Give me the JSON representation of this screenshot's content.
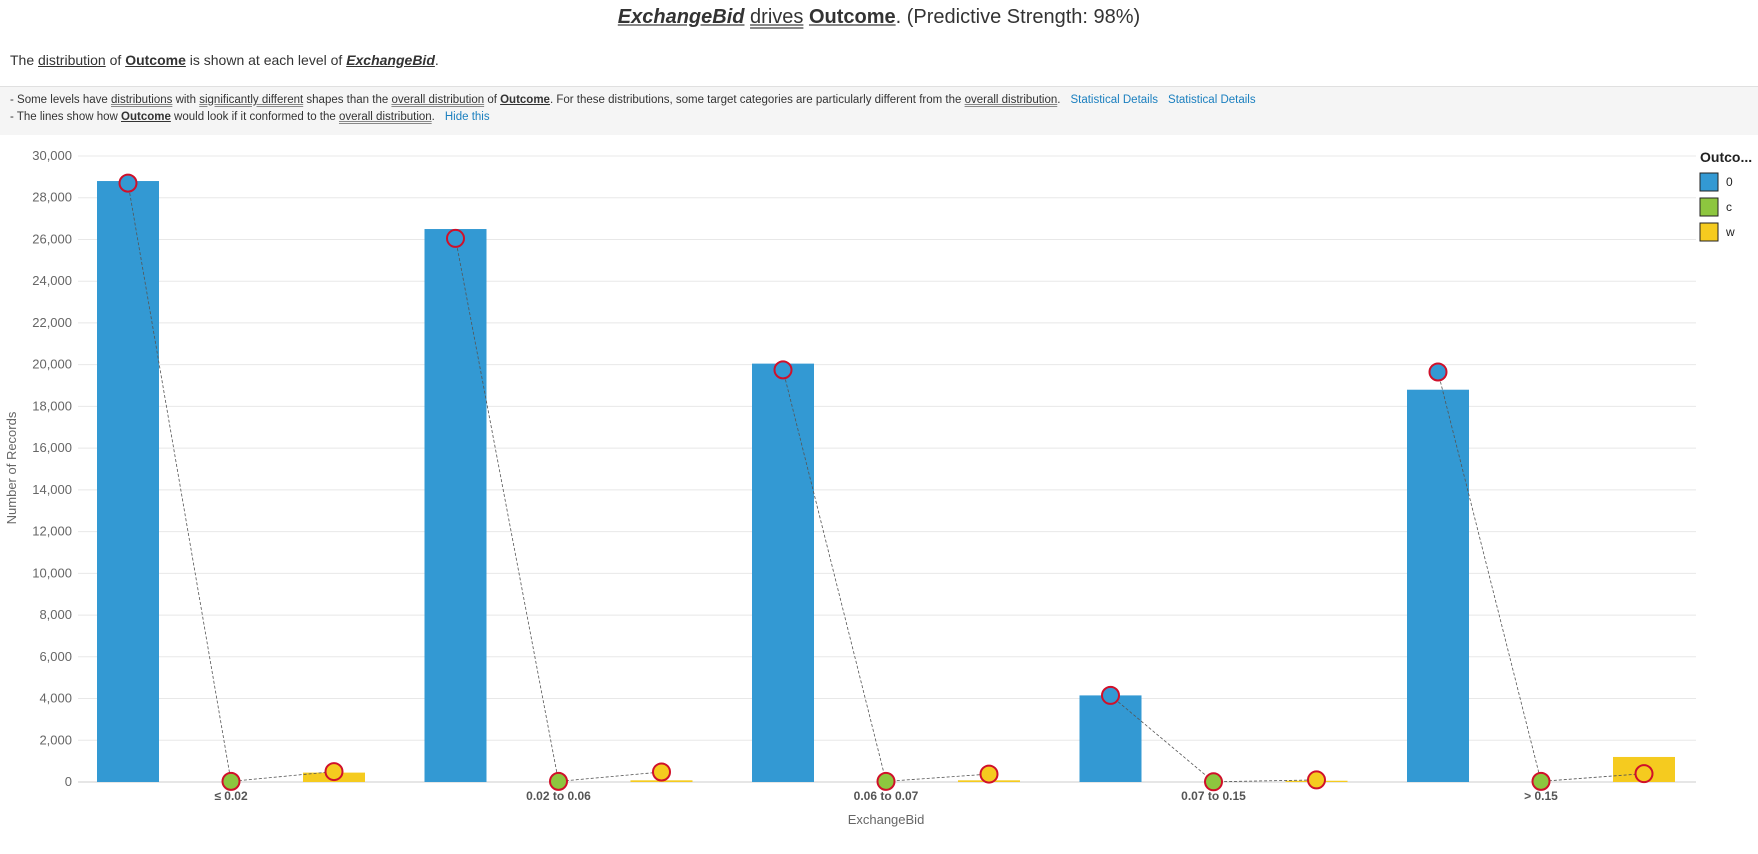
{
  "headline": {
    "driver": "ExchangeBid",
    "verb": "drives",
    "target": "Outcome",
    "suffix": ". (Predictive Strength: 98%)"
  },
  "subline": {
    "p1": "The ",
    "distribution": "distribution",
    "p2": " of ",
    "target": "Outcome",
    "p3": " is shown at each level of ",
    "driver": "ExchangeBid",
    "p4": "."
  },
  "info": {
    "line1": {
      "a": "- Some levels have ",
      "b": "distributions",
      "c": " with ",
      "d": "significantly different",
      "e": " shapes than the ",
      "f": "overall distribution",
      "g": " of ",
      "h": "Outcome",
      "i": ". For these distributions, some target categories are particularly different from the ",
      "j": "overall distribution",
      "k": ".",
      "link1": "Statistical Details",
      "link2": "Statistical Details"
    },
    "line2": {
      "a": "- The lines show how ",
      "b": "Outcome",
      "c": " would look if it conformed to the ",
      "d": "overall distribution",
      "e": ".",
      "link": "Hide this"
    }
  },
  "chart_data": {
    "type": "bar",
    "xlabel": "ExchangeBid",
    "ylabel": "Number of Records",
    "ylim": [
      0,
      30000
    ],
    "yticks": [
      0,
      2000,
      4000,
      6000,
      8000,
      10000,
      12000,
      14000,
      16000,
      18000,
      20000,
      22000,
      24000,
      26000,
      28000,
      30000
    ],
    "ytick_labels": [
      "0",
      "2,000",
      "4,000",
      "6,000",
      "8,000",
      "10,000",
      "12,000",
      "14,000",
      "16,000",
      "18,000",
      "20,000",
      "22,000",
      "24,000",
      "26,000",
      "28,000",
      "30,000"
    ],
    "categories": [
      "≤ 0.02",
      "0.02 to 0.06",
      "0.06 to 0.07",
      "0.07 to 0.15",
      "> 0.15"
    ],
    "legend_title": "Outco...",
    "legend_position": "top-right",
    "grid": true,
    "series": [
      {
        "name": "0",
        "color": "#3399d3",
        "values": [
          28800,
          26500,
          20050,
          4150,
          18800
        ],
        "expected": [
          28700,
          26050,
          19750,
          4150,
          19650
        ]
      },
      {
        "name": "c",
        "color": "#8dc63f",
        "values": [
          0,
          0,
          0,
          0,
          0
        ],
        "expected": [
          30,
          30,
          30,
          10,
          30
        ]
      },
      {
        "name": "w",
        "color": "#f5cb1f",
        "values": [
          450,
          80,
          80,
          60,
          1200
        ],
        "expected": [
          500,
          480,
          380,
          100,
          400
        ]
      }
    ],
    "expected_marker_stroke": "#d0102a"
  }
}
